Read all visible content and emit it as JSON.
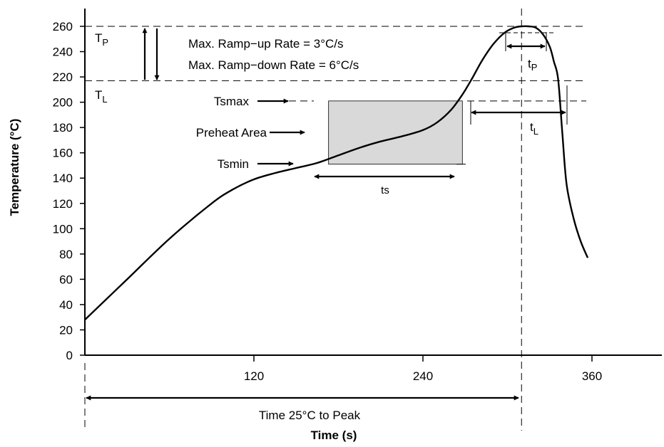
{
  "chart_data": {
    "type": "line",
    "title": "",
    "xlabel": "Time (s)",
    "ylabel": "Temperature (°C)",
    "xlim": [
      0,
      380
    ],
    "ylim": [
      0,
      260
    ],
    "x_ticks": [
      120,
      240,
      360
    ],
    "y_ticks": [
      0,
      20,
      40,
      60,
      80,
      100,
      120,
      140,
      160,
      180,
      200,
      220,
      240,
      260
    ],
    "grid": false,
    "series": [
      {
        "name": "",
        "x": [
          0,
          30,
          60,
          90,
          105,
          120,
          135,
          150,
          165,
          180,
          195,
          210,
          225,
          240,
          250,
          260,
          268,
          275,
          282,
          290,
          298,
          305,
          310,
          315,
          320,
          325,
          330,
          333,
          336,
          339,
          342,
          347,
          352,
          357
        ],
        "y": [
          28,
          60,
          92,
          120,
          131,
          139,
          144,
          148,
          152,
          158,
          164,
          169,
          173,
          178,
          184,
          194,
          206,
          219,
          233,
          246,
          255,
          259,
          260,
          260,
          259,
          254,
          244,
          232,
          218,
          175,
          135,
          108,
          90,
          77
        ]
      }
    ],
    "reference_lines": {
      "TP": 260,
      "TL": 217,
      "Tsmax": 201,
      "Tsmin": 151,
      "peak_time": 310
    },
    "preheat_area": {
      "x_start": 173,
      "x_end": 268,
      "y_min": 151,
      "y_max": 201
    },
    "labels": {
      "tp_upper": "T",
      "tp_sub": "P",
      "tl_upper": "T",
      "tl_sub": "L",
      "ramp_up": "Max. Ramp−up Rate = 3°C/s",
      "ramp_down": "Max. Ramp−down Rate = 6°C/s",
      "tsmax": "Tsmax",
      "preheat": "Preheat Area",
      "tsmin": "Tsmin",
      "ts": "ts",
      "tp_time_main": "t",
      "tp_time_sub": "P",
      "tl_time_main": "t",
      "tl_time_sub": "L",
      "time_to_peak": "Time 25°C to Peak"
    },
    "colors": {
      "curve": "#000000",
      "preheat_fill": "#d9d9d9",
      "axis": "#000000"
    }
  }
}
